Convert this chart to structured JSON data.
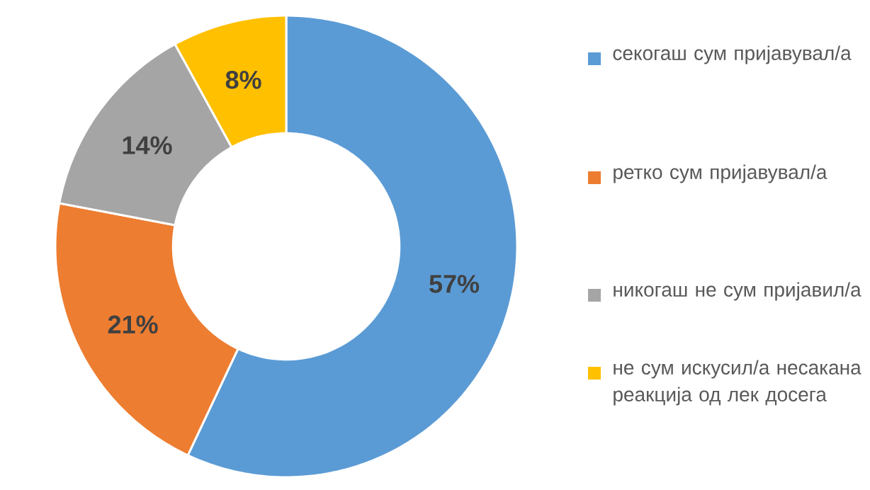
{
  "chart_data": {
    "type": "donut",
    "categories": [
      "секогаш сум пријавувал/а",
      "ретко сум пријавувал/а",
      "никогаш не сум пријавил/а",
      "не сум искусил/а несакана реакција од лек досега"
    ],
    "values": [
      57,
      21,
      14,
      8
    ],
    "value_labels": [
      "57%",
      "21%",
      "14%",
      "8%"
    ],
    "colors": [
      "#5b9bd5",
      "#ed7d31",
      "#a5a5a5",
      "#ffc000"
    ],
    "legend": "right"
  }
}
